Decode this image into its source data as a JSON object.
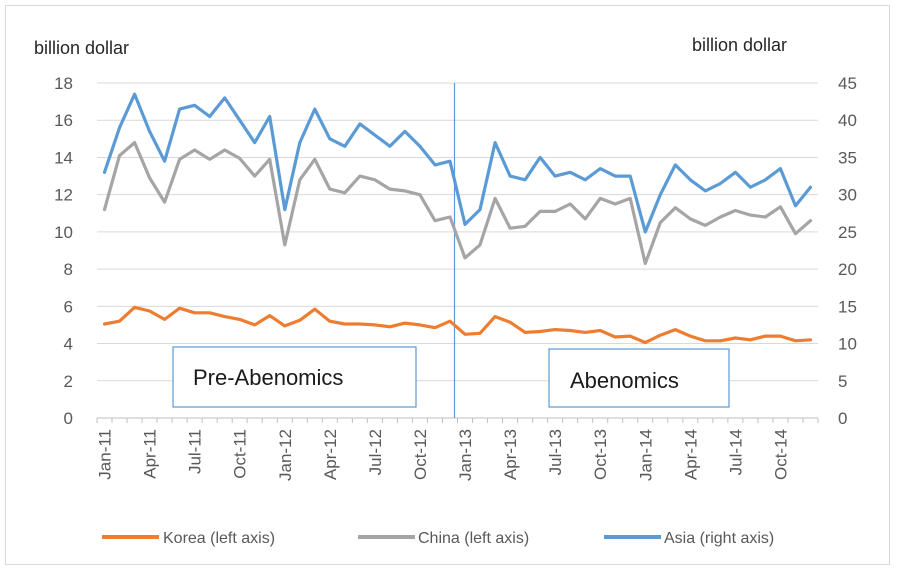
{
  "chart_data": {
    "type": "line",
    "left_axis_label": "billion dollar",
    "right_axis_label": "billion dollar",
    "left_ylim": [
      0,
      18
    ],
    "left_yticks": [
      "0",
      "2",
      "4",
      "6",
      "8",
      "10",
      "12",
      "14",
      "16",
      "18"
    ],
    "right_ylim": [
      0,
      45
    ],
    "right_yticks": [
      "0",
      "5",
      "10",
      "15",
      "20",
      "25",
      "30",
      "35",
      "40",
      "45"
    ],
    "x_tick_labels": [
      "Jan-11",
      "Apr-11",
      "Jul-11",
      "Oct-11",
      "Jan-12",
      "Apr-12",
      "Jul-12",
      "Oct-12",
      "Jan-13",
      "Apr-13",
      "Jul-13",
      "Oct-13",
      "Jan-14",
      "Apr-14",
      "Jul-14",
      "Oct-14"
    ],
    "period_divider_after": "Dec-12",
    "annotations": [
      "Pre-Abenomics",
      "Abenomics"
    ],
    "grid": "horizontal",
    "legend_position": "bottom",
    "series": [
      {
        "name": "Korea (left axis)",
        "axis": "left",
        "color": "#ED7D31",
        "values": [
          5.05,
          5.2,
          5.95,
          5.75,
          5.3,
          5.9,
          5.65,
          5.65,
          5.45,
          5.3,
          5.0,
          5.5,
          4.95,
          5.25,
          5.85,
          5.2,
          5.05,
          5.05,
          5.0,
          4.9,
          5.1,
          5.0,
          4.85,
          5.2,
          4.5,
          4.55,
          5.45,
          5.15,
          4.6,
          4.65,
          4.75,
          4.7,
          4.6,
          4.7,
          4.35,
          4.4,
          4.05,
          4.45,
          4.75,
          4.4,
          4.15,
          4.15,
          4.3,
          4.2,
          4.4,
          4.4,
          4.15,
          4.2
        ]
      },
      {
        "name": "China (left axis)",
        "axis": "left",
        "color": "#A5A5A5",
        "values": [
          11.2,
          14.1,
          14.8,
          12.9,
          11.6,
          13.9,
          14.4,
          13.9,
          14.4,
          13.95,
          13.0,
          13.9,
          9.3,
          12.8,
          13.9,
          12.3,
          12.1,
          13.0,
          12.8,
          12.3,
          12.2,
          12.0,
          10.6,
          10.8,
          8.6,
          9.3,
          11.8,
          10.2,
          10.3,
          11.1,
          11.1,
          11.5,
          10.7,
          11.8,
          11.5,
          11.8,
          8.3,
          10.5,
          11.3,
          10.7,
          10.35,
          10.8,
          11.15,
          10.9,
          10.8,
          11.35,
          9.9,
          10.6
        ]
      },
      {
        "name": "Asia (right axis)",
        "axis": "right",
        "color": "#5B9BD5",
        "values": [
          33.0,
          39.0,
          43.5,
          38.5,
          34.5,
          41.5,
          42.0,
          40.5,
          43.0,
          40.0,
          37.0,
          40.5,
          28.0,
          37.0,
          41.5,
          37.5,
          36.5,
          39.5,
          38.0,
          36.5,
          38.5,
          36.5,
          34.0,
          34.5,
          26.0,
          28.0,
          37.0,
          32.5,
          32.0,
          35.0,
          32.5,
          33.0,
          32.0,
          33.5,
          32.5,
          32.5,
          25.0,
          30.0,
          34.0,
          32.0,
          30.5,
          31.5,
          33.0,
          31.0,
          32.0,
          33.5,
          28.5,
          31.0
        ]
      }
    ]
  }
}
